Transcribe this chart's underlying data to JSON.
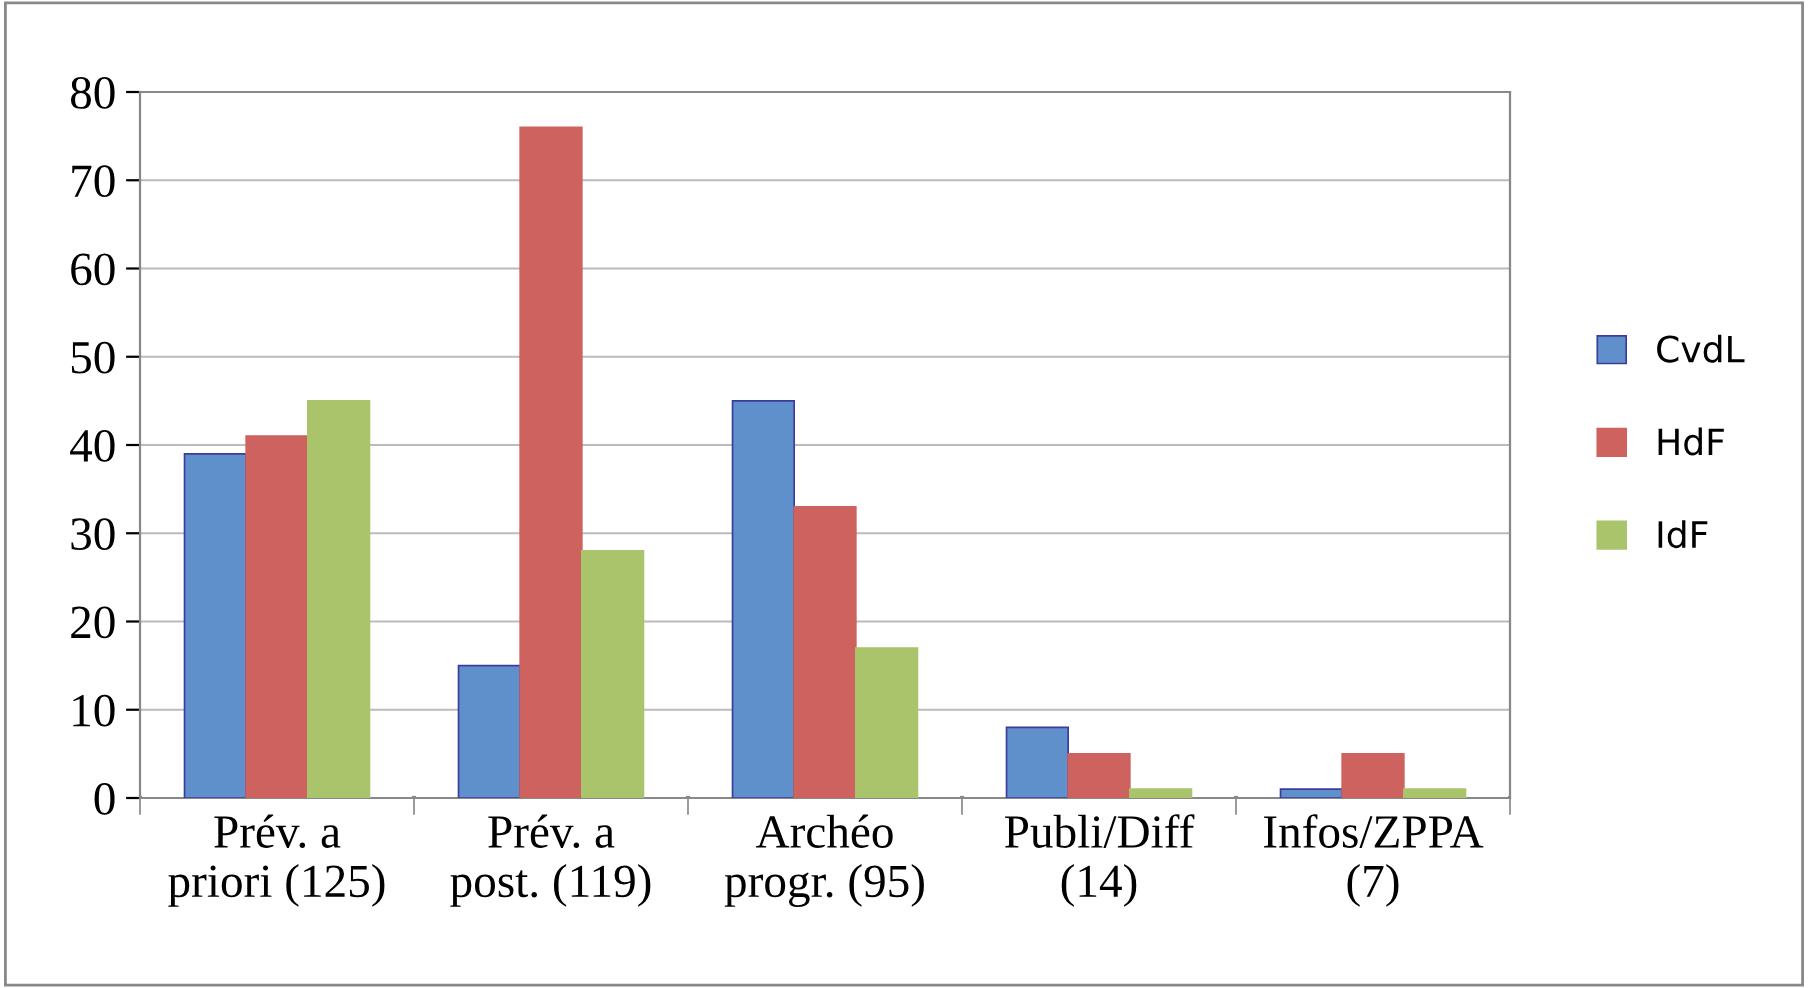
{
  "chart_data": {
    "type": "bar",
    "categories": [
      "Prév. a\npriori (125)",
      "Prév. a\npost. (119)",
      "Archéo\nprogr. (95)",
      "Publi/Diff\n(14)",
      "Infos/ZPPA\n(7)"
    ],
    "series": [
      {
        "name": "CvdL",
        "color": "#5f90cb",
        "values": [
          39,
          15,
          45,
          8,
          1
        ]
      },
      {
        "name": "HdF",
        "color": "#cd625f",
        "values": [
          41,
          76,
          33,
          5,
          5
        ]
      },
      {
        "name": "IdF",
        "color": "#a9c46b",
        "values": [
          45,
          28,
          17,
          1,
          1
        ]
      }
    ],
    "ylim": [
      0,
      80
    ],
    "yticks": [
      0,
      10,
      20,
      30,
      40,
      50,
      60,
      70,
      80
    ],
    "grid": "y",
    "legend": "right"
  }
}
